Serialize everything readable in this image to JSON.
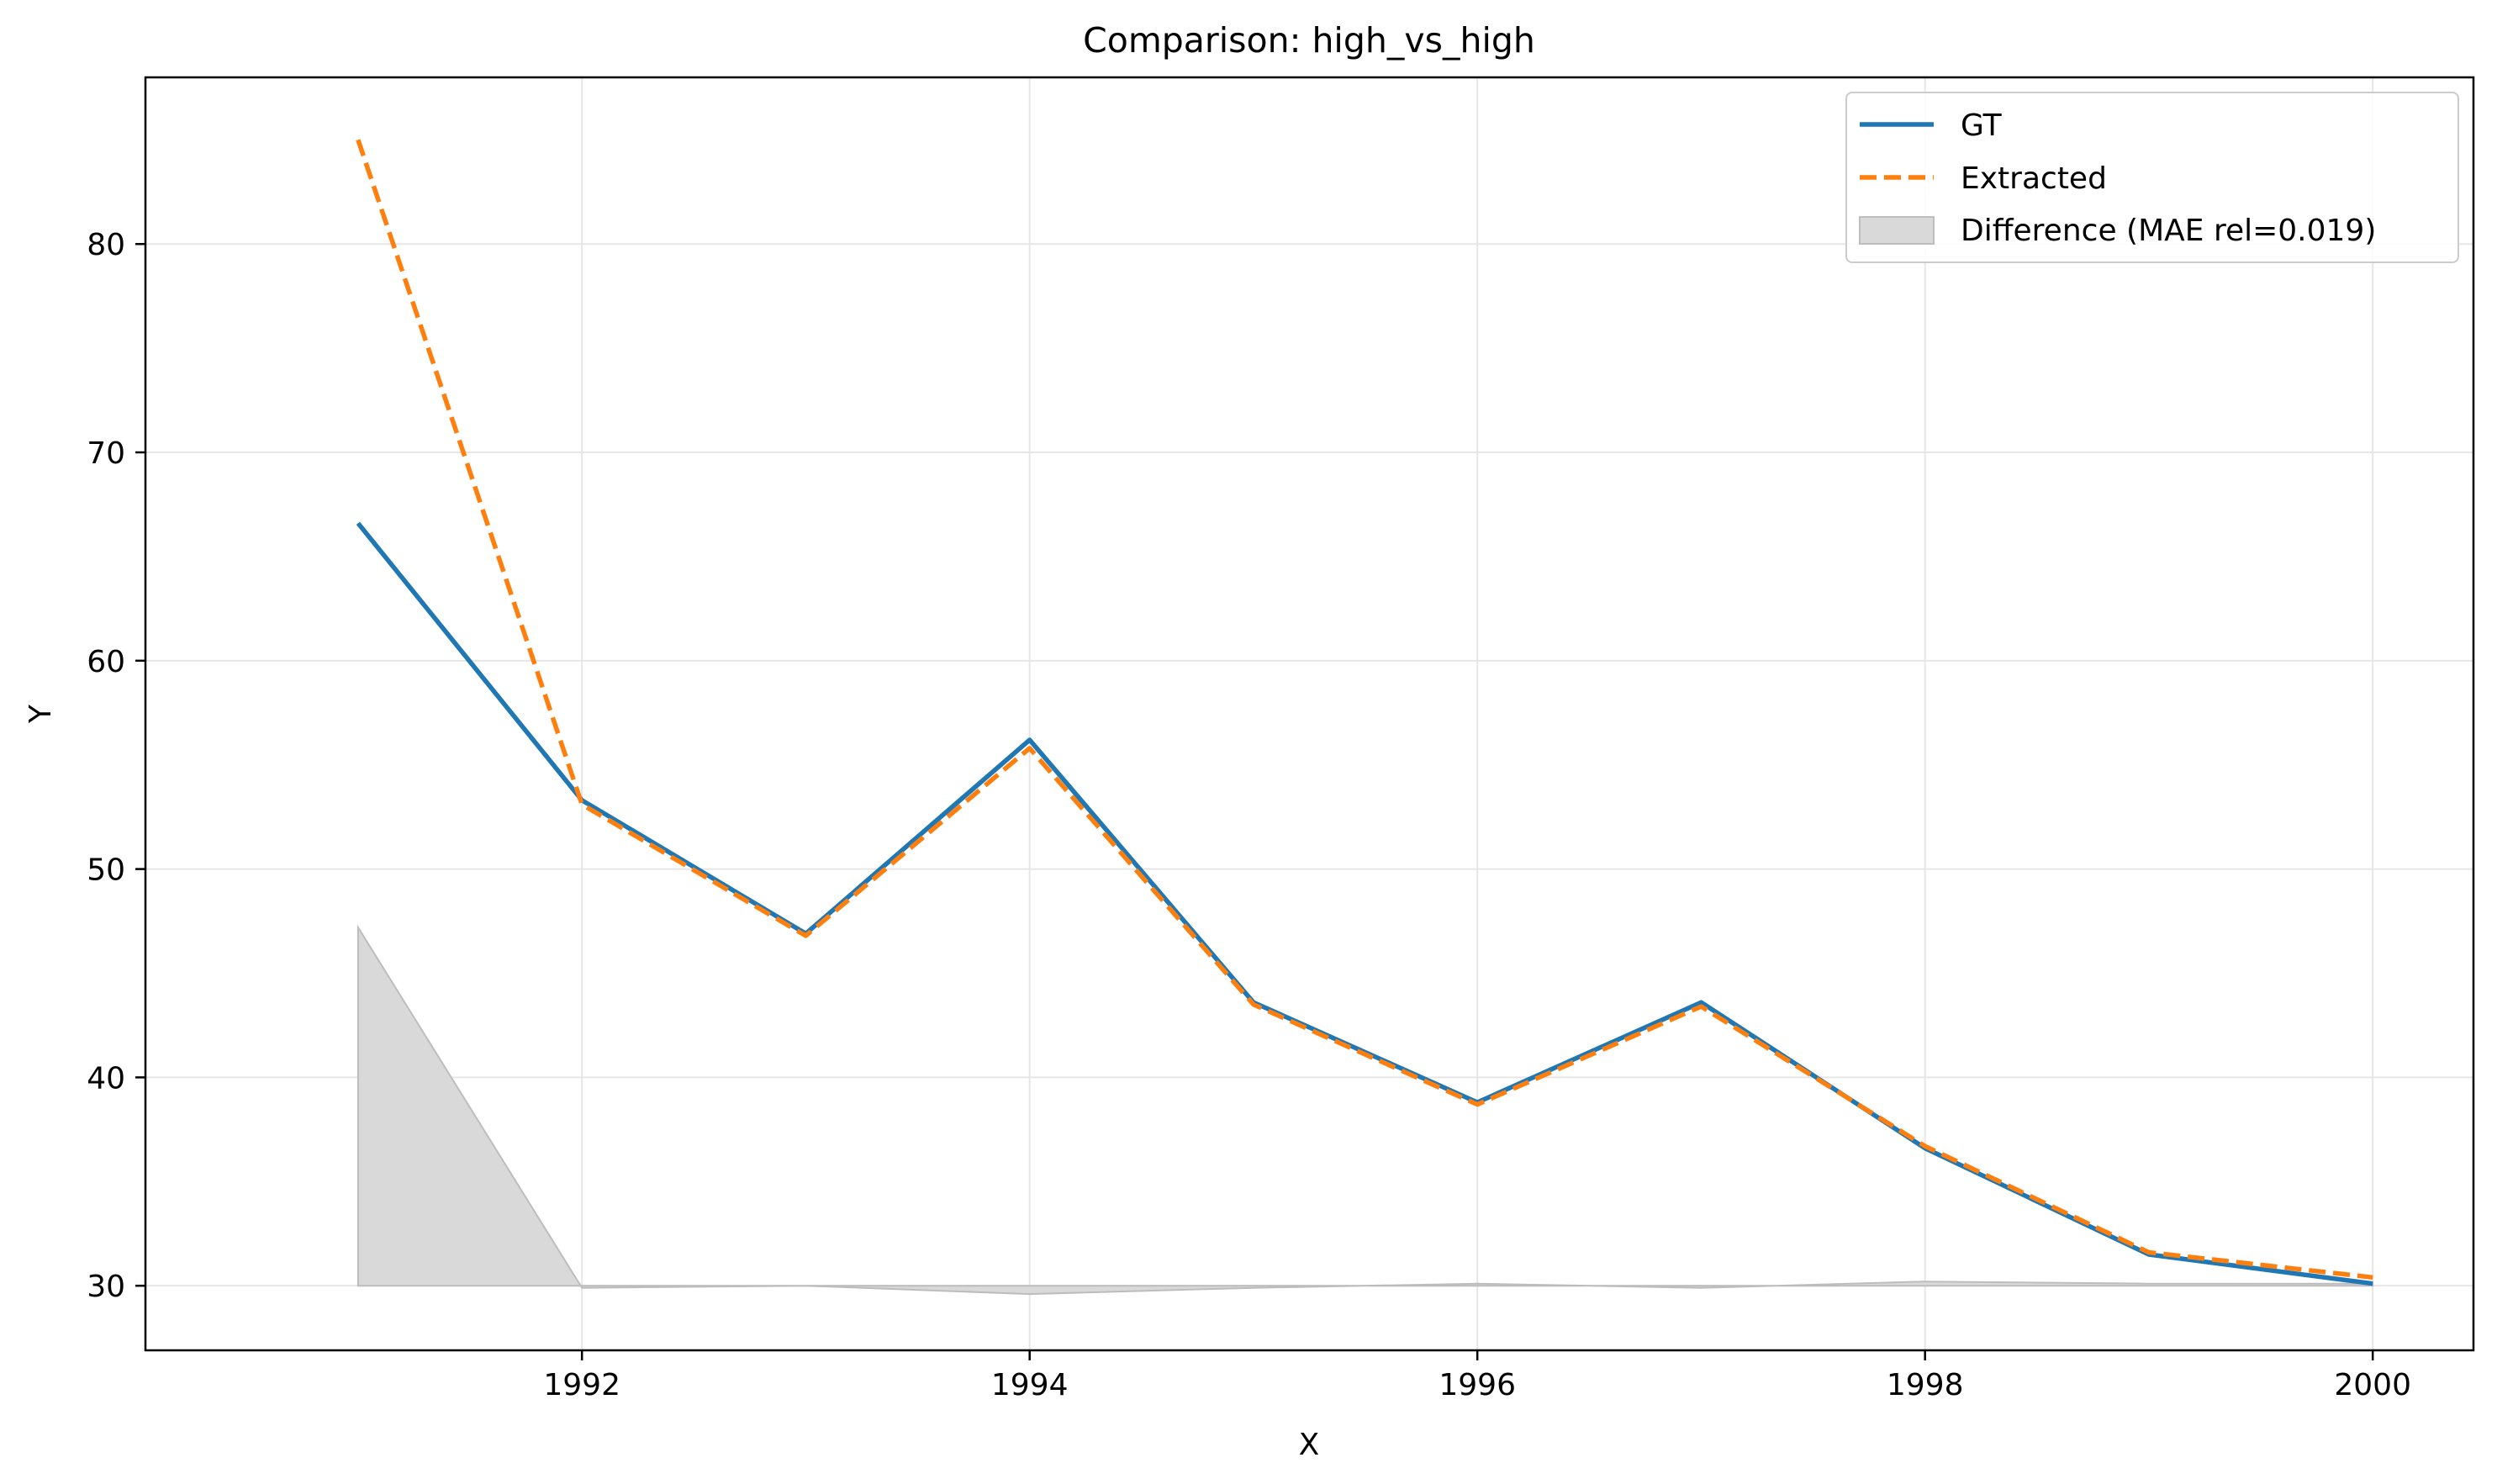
{
  "chart_data": {
    "type": "line",
    "title": "Comparison: high_vs_high",
    "xlabel": "X",
    "ylabel": "Y",
    "x": [
      1991,
      1992,
      1993,
      1994,
      1995,
      1996,
      1997,
      1998,
      1999,
      2000
    ],
    "xlim": [
      1990.05,
      2000.45
    ],
    "ylim": [
      26.9,
      88.0
    ],
    "xticks": [
      1992,
      1994,
      1996,
      1998,
      2000
    ],
    "yticks": [
      30,
      40,
      50,
      60,
      70,
      80
    ],
    "grid": true,
    "legend_position": "top-right",
    "series": [
      {
        "name": "GT",
        "style": "solid",
        "color": "#1f77b4",
        "values": [
          66.6,
          53.3,
          46.9,
          56.2,
          43.6,
          38.8,
          43.6,
          36.6,
          31.5,
          30.1
        ]
      },
      {
        "name": "Extracted",
        "style": "dashed",
        "color": "#ff7f0e",
        "values": [
          85.0,
          53.1,
          46.8,
          55.8,
          43.5,
          38.7,
          43.4,
          36.7,
          31.6,
          30.4
        ]
      }
    ],
    "difference": {
      "name": "Difference (MAE rel=0.019)",
      "color": "#d9d9d9",
      "edge_color": "#bdbdbd",
      "baseline": 30,
      "values": [
        47.2,
        29.9,
        30.0,
        29.6,
        29.9,
        30.1,
        29.9,
        30.2,
        30.1,
        30.1
      ]
    }
  }
}
